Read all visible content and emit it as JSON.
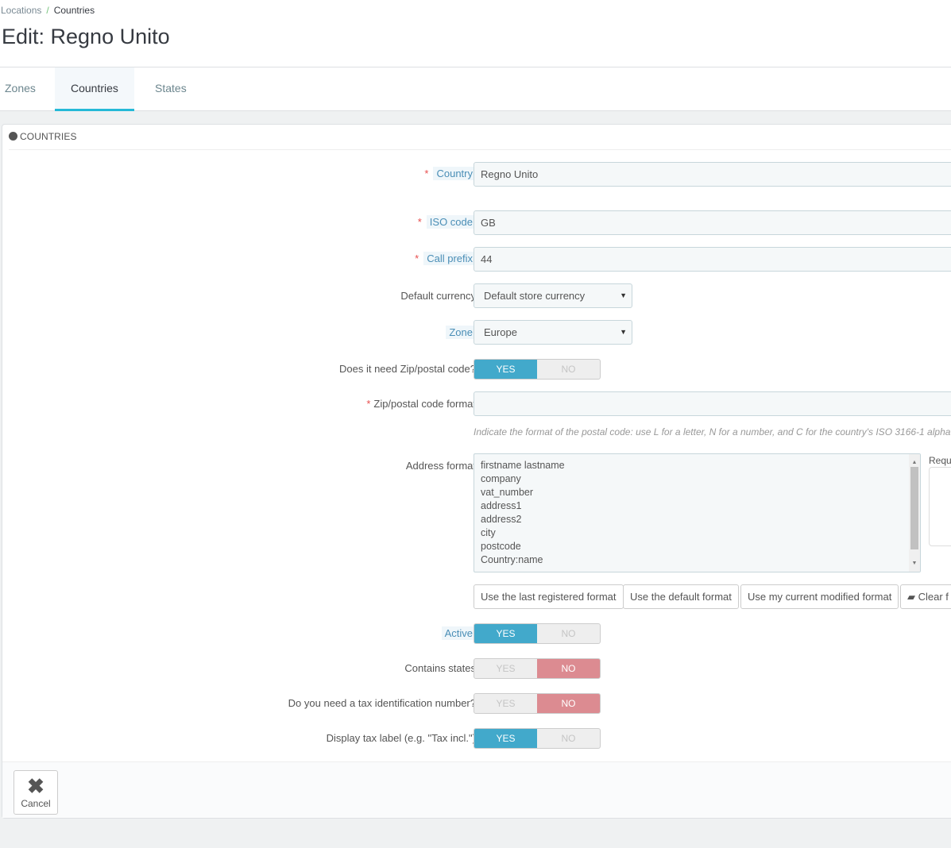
{
  "breadcrumb": {
    "parent": "Locations",
    "separator": "/",
    "current": "Countries"
  },
  "page_title": "Edit: Regno Unito",
  "tabs": [
    {
      "label": "Zones"
    },
    {
      "label": "Countries",
      "active": true
    },
    {
      "label": "States"
    }
  ],
  "panel": {
    "title": "COUNTRIES",
    "icon": "globe-icon"
  },
  "form": {
    "country": {
      "label": "Country",
      "value": "Regno Unito",
      "required": "*"
    },
    "iso_code": {
      "label": "ISO code",
      "value": "GB",
      "required": "*"
    },
    "call_prefix": {
      "label": "Call prefix",
      "value": "44",
      "required": "*"
    },
    "default_currency": {
      "label": "Default currency",
      "value": "Default store currency"
    },
    "zone": {
      "label": "Zone",
      "value": "Europe"
    },
    "need_zip": {
      "label": "Does it need Zip/postal code?",
      "yes": "YES",
      "no": "NO",
      "value": "yes"
    },
    "zip_format": {
      "label": "Zip/postal code format",
      "value": "",
      "required": "*",
      "help": "Indicate the format of the postal code: use L for a letter, N for a number, and C for the country's ISO 3166-1 alpha-"
    },
    "address_format": {
      "label": "Address format",
      "lines": [
        "firstname lastname",
        "company",
        "vat_number",
        "address1",
        "address2",
        "city",
        "postcode",
        "Country:name"
      ],
      "side_label": "Requ"
    },
    "format_buttons": {
      "last": "Use the last registered format",
      "default": "Use the default format",
      "current": "Use my current modified format",
      "clear": "Clear f"
    },
    "active": {
      "label": "Active",
      "yes": "YES",
      "no": "NO",
      "value": "yes"
    },
    "contains_states": {
      "label": "Contains states",
      "yes": "YES",
      "no": "NO",
      "value": "no"
    },
    "need_tax_id": {
      "label": "Do you need a tax identification number?",
      "yes": "YES",
      "no": "NO",
      "value": "no"
    },
    "display_tax_label": {
      "label": "Display tax label (e.g. \"Tax incl.\")",
      "yes": "YES",
      "no": "NO",
      "value": "yes"
    }
  },
  "footer": {
    "cancel": "Cancel"
  },
  "colors": {
    "toggle_yes": "#42a9cb",
    "toggle_no": "#dc8b91",
    "tab_accent": "#25b9d7"
  }
}
